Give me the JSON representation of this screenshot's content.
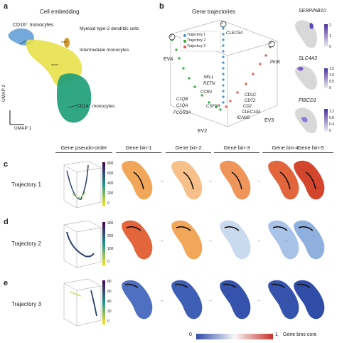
{
  "panel_a": {
    "letter": "a",
    "title": "Cell embedding",
    "labels": {
      "cd16": "CD16⁺ monocytes",
      "myeloid": "Myeloid type-2 dendritic cells",
      "intermediate": "Intermediate monocytes",
      "cd14": "CD14⁺ monocytes"
    },
    "axis_y": "UMAP 2",
    "axis_x": "UMAP 1"
  },
  "panel_b": {
    "letter": "b",
    "title": "Gene trajectories",
    "legend": [
      "Trajectory 1",
      "Trajectory 2",
      "Trajectory 3"
    ],
    "legend_colors": [
      "#4a8fd6",
      "#2eaa3a",
      "#e0594b"
    ],
    "axes": {
      "ev2": "EV2",
      "ev3": "EV3",
      "ev4": "EV4"
    },
    "genes": {
      "clec5a": "CLEC5A",
      "pkib": "PKIB",
      "sell": "SELL",
      "retn": "RETN",
      "ccr2": "CCR2",
      "c1qb": "C1QB",
      "c1qa": "C1QA",
      "fcgr3a": "FCGR3A",
      "csf1r": "CSF1R",
      "cd1c": "CD1C",
      "cd72": "CD72",
      "cd2": "CD2",
      "clec10a": "CLEC10A",
      "icam2": "ICAM2"
    },
    "markers": [
      "1",
      "2",
      "3"
    ],
    "insets": [
      {
        "gene": "SERPINB10",
        "ticks": [
          "0",
          "1",
          "2"
        ]
      },
      {
        "gene": "SLC4A3",
        "ticks": [
          "0",
          "0.5",
          "1.0",
          "1.5"
        ]
      },
      {
        "gene": "FIBCD1",
        "ticks": [
          "0",
          "0.4",
          "0.8",
          "1.2"
        ]
      }
    ]
  },
  "header": {
    "pseudo_order": "Gene pseudo-order",
    "bins": [
      "Gene bin-1",
      "Gene bin-2",
      "Gene bin-3",
      "Gene bin-4",
      "Gene bin-5"
    ]
  },
  "rows": [
    {
      "letter": "c",
      "label": "Trajectory 1",
      "ticks": [
        "800",
        "600",
        "400",
        "200",
        "0"
      ]
    },
    {
      "letter": "d",
      "label": "Trajectory 2",
      "ticks": [
        "300",
        "200",
        "100",
        "0"
      ]
    },
    {
      "letter": "e",
      "label": "Trajectory 3",
      "ticks": [
        "80",
        "60",
        "40",
        "20",
        "0"
      ]
    }
  ],
  "colorbar": {
    "min": "0",
    "max": "1",
    "label": "Gene bins core"
  }
}
